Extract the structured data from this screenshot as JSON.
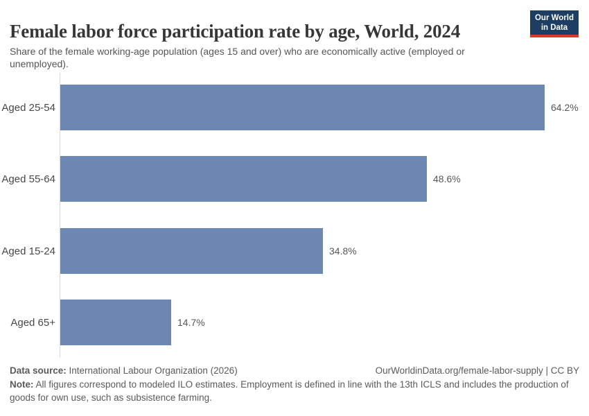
{
  "header": {
    "title": "Female labor force participation rate by age, World, 2024",
    "subtitle": "Share of the female working-age population (ages 15 and over) who are economically active (employed or unemployed).",
    "logo": {
      "line1": "Our World",
      "line2": "in Data"
    }
  },
  "chart_data": {
    "type": "bar",
    "orientation": "horizontal",
    "title": "Female labor force participation rate by age, World, 2024",
    "categories": [
      "Aged 25-54",
      "Aged 55-64",
      "Aged 15-24",
      "Aged 65+"
    ],
    "values": [
      64.2,
      48.6,
      34.8,
      14.7
    ],
    "value_labels": [
      "64.2%",
      "48.6%",
      "34.8%",
      "14.7%"
    ],
    "unit": "%",
    "xlabel": "",
    "ylabel": "",
    "xlim": [
      0,
      64.2
    ],
    "grid": false,
    "legend": false
  },
  "footer": {
    "source_label": "Data source:",
    "source_text": " International Labour Organization (2026)",
    "citation": "OurWorldinData.org/female-labor-supply | CC BY",
    "note_label": "Note:",
    "note_text": " All figures correspond to modeled ILO estimates. Employment is defined in line with the 13th ICLS and includes the production of goods for own use, such as subsistence farming."
  },
  "colors": {
    "bar": "#6d87b3",
    "axis_line": "#d9d9d9",
    "logo_navy": "#1d3d63",
    "logo_red": "#e0372b",
    "title_text": "#373737",
    "body_text": "#555555"
  }
}
